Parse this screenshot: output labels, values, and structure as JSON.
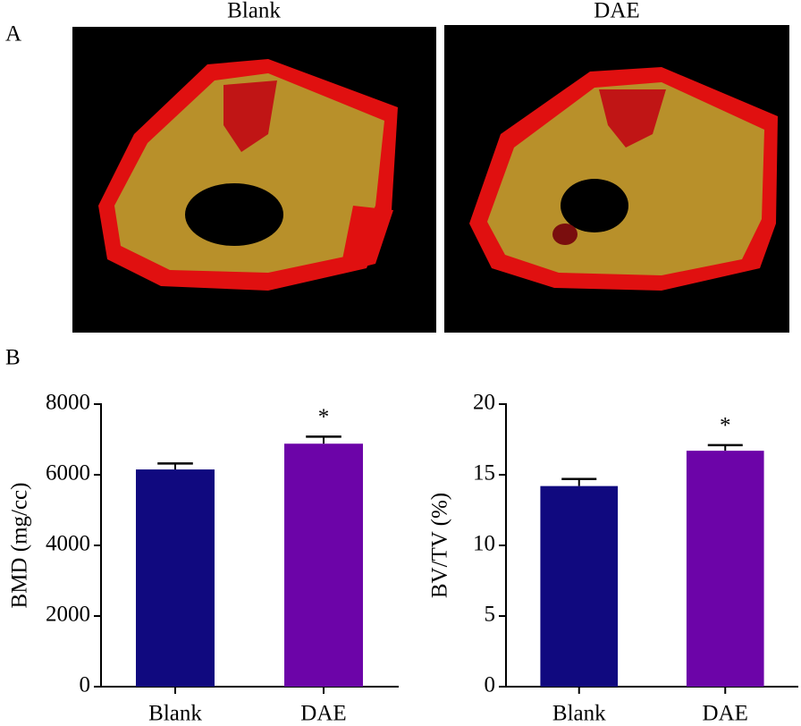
{
  "panels": [
    "A",
    "B"
  ],
  "images": [
    {
      "title": "Blank"
    },
    {
      "title": "DAE"
    }
  ],
  "chart_data": [
    {
      "type": "bar",
      "ylabel": "BMD (mg/cc)",
      "categories": [
        "Blank",
        "DAE"
      ],
      "values": [
        6150,
        6880
      ],
      "errors": [
        170,
        200
      ],
      "colors": [
        "#10097f",
        "#6c04a8"
      ],
      "significance": [
        null,
        "*"
      ],
      "ylim": [
        0,
        8000
      ],
      "yticks": [
        0,
        2000,
        4000,
        6000,
        8000
      ]
    },
    {
      "type": "bar",
      "ylabel": "BV/TV (%)",
      "categories": [
        "Blank",
        "DAE"
      ],
      "values": [
        14.2,
        16.7
      ],
      "errors": [
        0.5,
        0.4
      ],
      "colors": [
        "#10097f",
        "#6c04a8"
      ],
      "significance": [
        null,
        "*"
      ],
      "ylim": [
        0,
        20
      ],
      "yticks": [
        0,
        5,
        10,
        15,
        20
      ]
    }
  ]
}
